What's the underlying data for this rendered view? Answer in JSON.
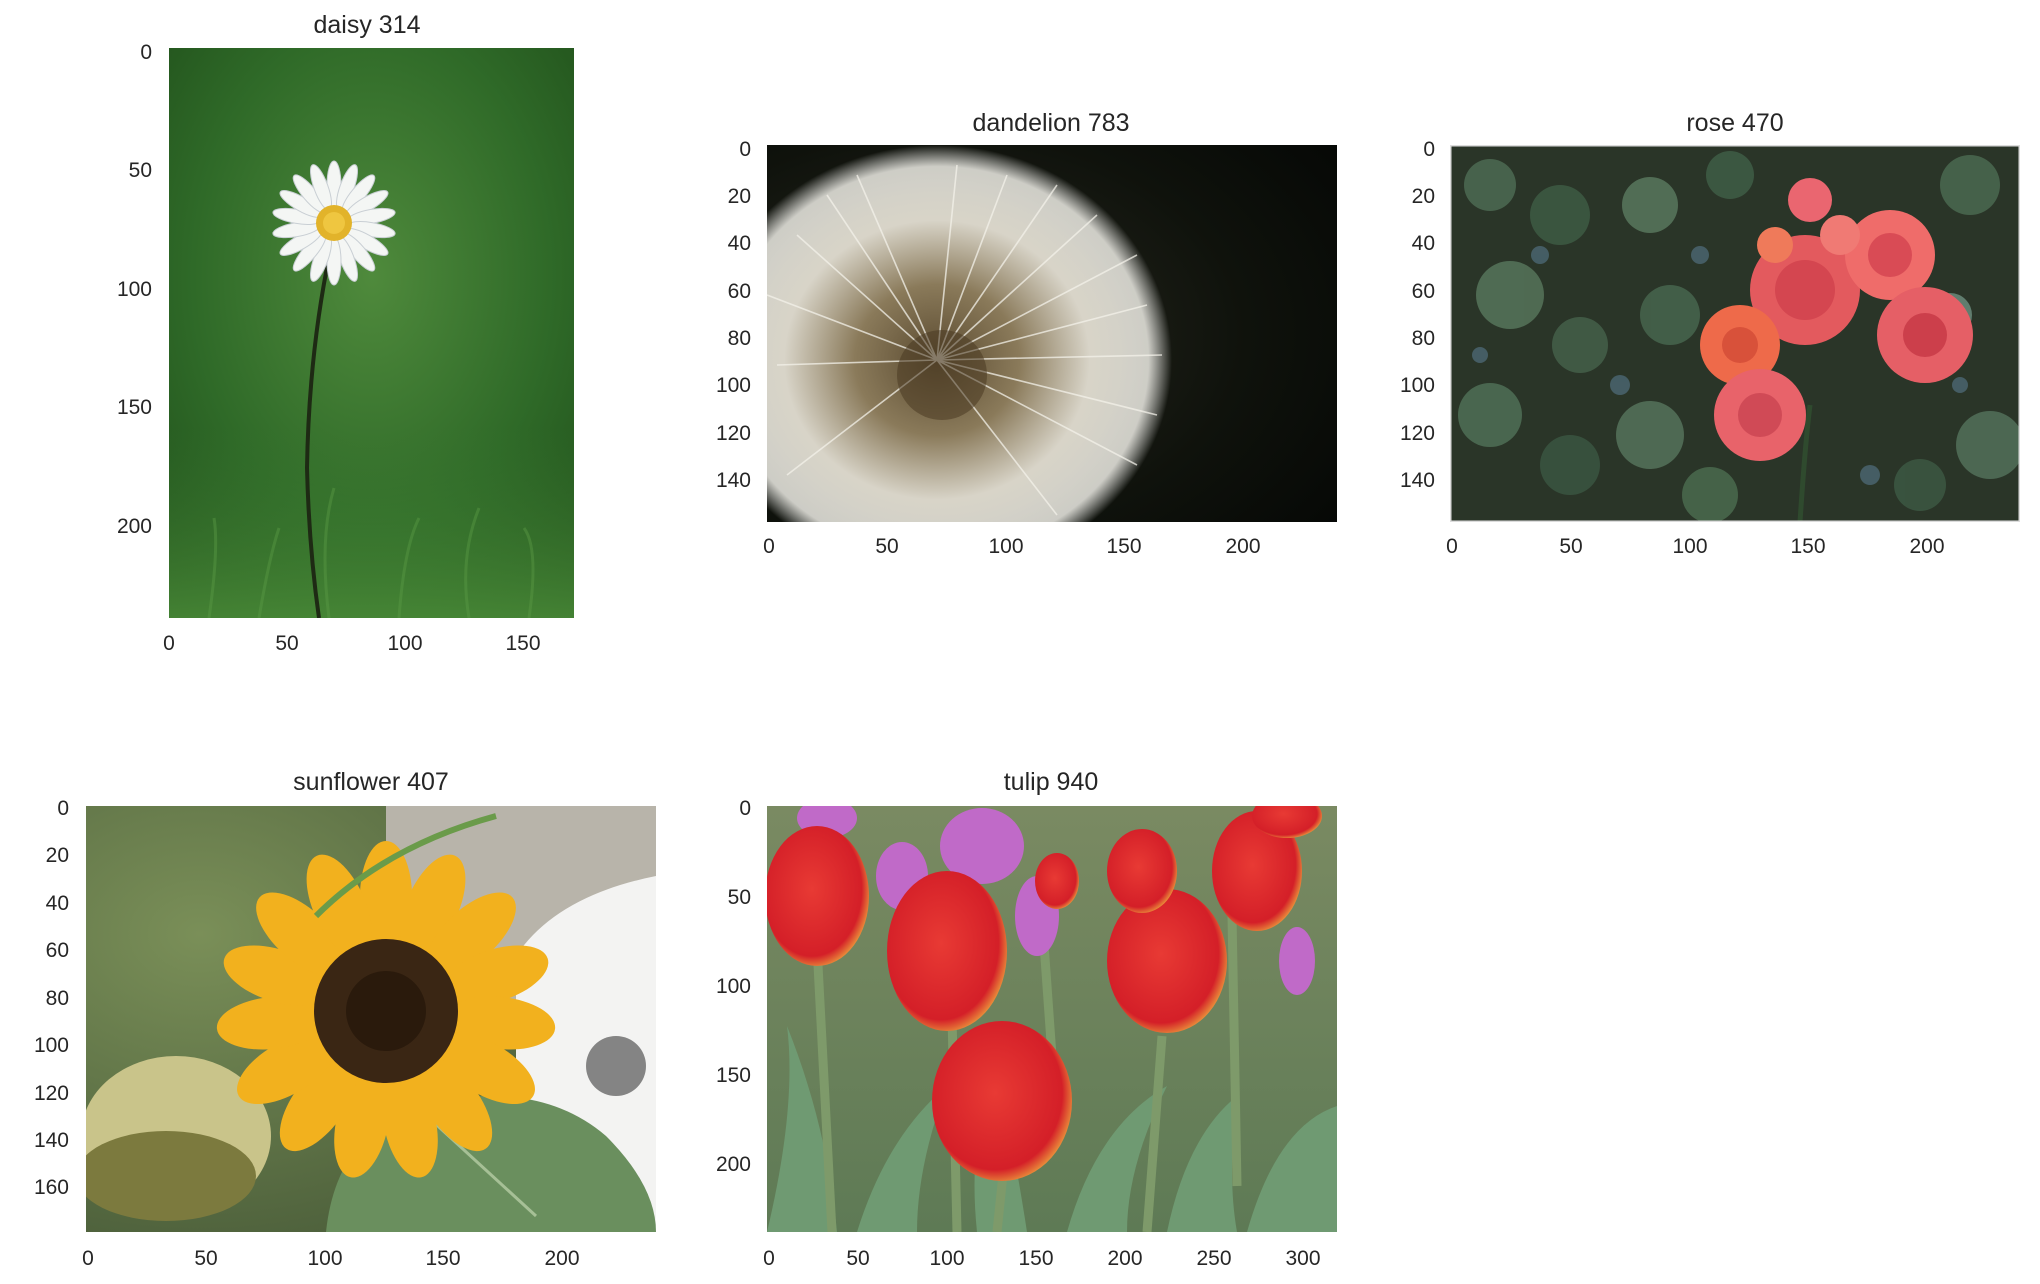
{
  "figure": {
    "subplots": [
      {
        "id": "daisy",
        "title": "daisy 314",
        "image_description": "white daisy on a thin stem against a blurred green background",
        "width": 171,
        "height": 240,
        "xticks": [
          "0",
          "50",
          "100",
          "150"
        ],
        "yticks": [
          "0",
          "50",
          "100",
          "150",
          "200"
        ]
      },
      {
        "id": "dandelion",
        "title": "dandelion 783",
        "image_description": "white dandelion seed head against a dark background",
        "width": 240,
        "height": 159,
        "xticks": [
          "0",
          "50",
          "100",
          "150",
          "200"
        ],
        "yticks": [
          "0",
          "20",
          "40",
          "60",
          "80",
          "100",
          "120",
          "140"
        ]
      },
      {
        "id": "rose",
        "title": "rose 470",
        "image_description": "cluster of pink-coral roses in front of dark green ivy",
        "width": 240,
        "height": 159,
        "xticks": [
          "0",
          "50",
          "100",
          "150",
          "200"
        ],
        "yticks": [
          "0",
          "20",
          "40",
          "60",
          "80",
          "100",
          "120",
          "140"
        ]
      },
      {
        "id": "sunflower",
        "title": "sunflower 407",
        "image_description": "wilting yellow sunflower with large green leaves and a white car in the background",
        "width": 240,
        "height": 180,
        "xticks": [
          "0",
          "50",
          "100",
          "150",
          "200"
        ],
        "yticks": [
          "0",
          "20",
          "40",
          "60",
          "80",
          "100",
          "120",
          "140",
          "160"
        ]
      },
      {
        "id": "tulip",
        "title": "tulip 940",
        "image_description": "field of red and yellow-edged tulips with some purple tulips",
        "width": 320,
        "height": 240,
        "xticks": [
          "0",
          "50",
          "100",
          "150",
          "200",
          "250",
          "300"
        ],
        "yticks": [
          "0",
          "50",
          "100",
          "150",
          "200"
        ]
      }
    ]
  }
}
